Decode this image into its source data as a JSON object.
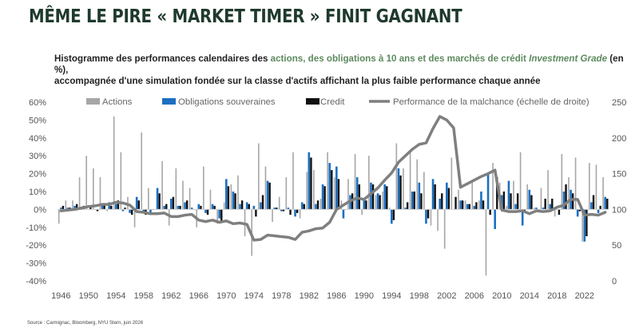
{
  "title": "MÊME LE PIRE « MARKET TIMER » FINIT GAGNANT",
  "subtitle": {
    "part1": "Histogramme des performances calendaires des ",
    "hl1": "actions, des obligations à 10 ans et des marchés de crédit ",
    "hl2": "Investment Grade",
    "part2": " (en %),",
    "line2": "accompagnée d'une simulation fondée sur la classe d'actifs affichant la plus faible performance chaque année"
  },
  "source": "Source : Carmignac, Bloomberg, NYU Stern, juin 2026",
  "colors": {
    "actions": "#a6a6a6",
    "obligations": "#1c6fc1",
    "credit": "#111111",
    "malchance": "#7f7f7f",
    "title": "#1f3a2d",
    "highlight": "#5d8a5e"
  },
  "chart_data": {
    "type": "bar",
    "x": [
      1946,
      1947,
      1948,
      1949,
      1950,
      1951,
      1952,
      1953,
      1954,
      1955,
      1956,
      1957,
      1958,
      1959,
      1960,
      1961,
      1962,
      1963,
      1964,
      1965,
      1966,
      1967,
      1968,
      1969,
      1970,
      1971,
      1972,
      1973,
      1974,
      1975,
      1976,
      1977,
      1978,
      1979,
      1980,
      1981,
      1982,
      1983,
      1984,
      1985,
      1986,
      1987,
      1988,
      1989,
      1990,
      1991,
      1992,
      1993,
      1994,
      1995,
      1996,
      1997,
      1998,
      1999,
      2000,
      2001,
      2002,
      2003,
      2004,
      2005,
      2006,
      2007,
      2008,
      2009,
      2010,
      2011,
      2012,
      2013,
      2014,
      2015,
      2016,
      2017,
      2018,
      2019,
      2020,
      2021,
      2022,
      2023,
      2024,
      2025
    ],
    "x_ticks": [
      "1946",
      "1950",
      "1954",
      "1958",
      "1962",
      "1966",
      "1970",
      "1974",
      "1978",
      "1982",
      "1986",
      "1990",
      "1994",
      "1998",
      "2002",
      "2006",
      "2010",
      "2014",
      "2018",
      "2022"
    ],
    "y_left_ticks": [
      "60%",
      "50%",
      "40%",
      "30%",
      "20%",
      "10%",
      "0%",
      "-10%",
      "-20%",
      "-30%",
      "-40%"
    ],
    "y_right_ticks": [
      "250",
      "200",
      "150",
      "100",
      "50",
      "0"
    ],
    "ylim_left": [
      -40,
      60
    ],
    "ylim_right": [
      0,
      250
    ],
    "legend_position": "top",
    "series": [
      {
        "name": "Actions",
        "axis": "left",
        "kind": "bar",
        "values": [
          -8,
          5,
          5,
          18,
          30,
          23,
          18,
          -1,
          52,
          32,
          7,
          -10,
          43,
          12,
          0,
          27,
          -9,
          23,
          16,
          12,
          -10,
          24,
          11,
          -8,
          4,
          14,
          19,
          -15,
          -26,
          37,
          24,
          -7,
          7,
          18,
          32,
          -5,
          21,
          22,
          6,
          32,
          18,
          5,
          17,
          31,
          -3,
          30,
          8,
          10,
          1,
          37,
          23,
          33,
          28,
          21,
          -9,
          -12,
          -22,
          29,
          11,
          5,
          16,
          5,
          -37,
          26,
          15,
          2,
          16,
          32,
          14,
          1,
          12,
          22,
          -4,
          31,
          18,
          29,
          -18,
          26,
          25,
          18
        ]
      },
      {
        "name": "Obligations souveraines",
        "axis": "left",
        "kind": "bar",
        "values": [
          1,
          1,
          2,
          0,
          0,
          0,
          2,
          4,
          3,
          -1,
          -2,
          7,
          -2,
          -3,
          12,
          2,
          6,
          2,
          4,
          1,
          3,
          -2,
          3,
          -5,
          17,
          10,
          3,
          4,
          2,
          4,
          16,
          1,
          -1,
          1,
          -4,
          4,
          32,
          3,
          14,
          26,
          24,
          -5,
          8,
          18,
          6,
          15,
          9,
          14,
          -8,
          23,
          1,
          10,
          15,
          -8,
          17,
          6,
          15,
          0,
          5,
          3,
          2,
          10,
          20,
          -11,
          8,
          16,
          3,
          -9,
          11,
          1,
          1,
          3,
          0,
          10,
          11,
          -4,
          -18,
          4,
          -2,
          7
        ]
      },
      {
        "name": "Credit",
        "axis": "left",
        "kind": "bar",
        "values": [
          2,
          1,
          3,
          2,
          2,
          -1,
          3,
          2,
          5,
          1,
          -3,
          5,
          -3,
          0,
          9,
          3,
          7,
          2,
          5,
          0,
          2,
          -3,
          2,
          -7,
          13,
          9,
          5,
          3,
          -4,
          8,
          15,
          1,
          -1,
          -3,
          -2,
          3,
          29,
          5,
          13,
          22,
          17,
          0,
          9,
          14,
          5,
          14,
          8,
          13,
          -6,
          19,
          4,
          10,
          9,
          -5,
          14,
          9,
          12,
          7,
          5,
          3,
          4,
          5,
          -3,
          18,
          10,
          9,
          9,
          -1,
          8,
          -1,
          6,
          6,
          -3,
          14,
          9,
          -1,
          -15,
          8,
          2,
          6
        ]
      },
      {
        "name": "Performance de la malchance (échelle de droite)",
        "axis": "right",
        "kind": "line",
        "values": [
          98,
          99,
          100,
          102,
          104,
          105,
          107,
          107,
          110,
          109,
          106,
          97,
          96,
          94,
          94,
          95,
          90,
          90,
          92,
          93,
          85,
          83,
          85,
          82,
          84,
          80,
          81,
          79,
          57,
          58,
          64,
          63,
          62,
          61,
          58,
          68,
          70,
          73,
          74,
          82,
          100,
          106,
          112,
          116,
          114,
          122,
          130,
          141,
          151,
          166,
          175,
          184,
          191,
          193,
          213,
          230,
          225,
          214,
          131,
          136,
          141,
          146,
          150,
          155,
          99,
          97,
          97,
          98,
          94,
          98,
          97,
          98,
          103,
          106,
          114,
          114,
          92,
          93,
          92,
          96
        ]
      }
    ]
  }
}
